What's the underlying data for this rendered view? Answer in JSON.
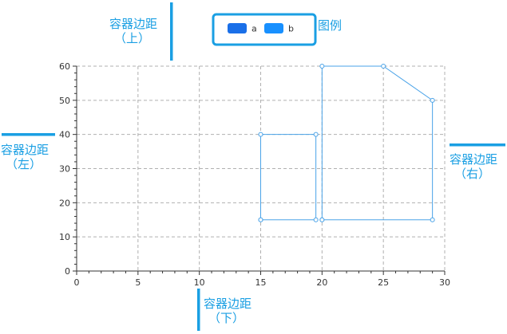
{
  "annotations": {
    "top": {
      "line1": "容器边距",
      "line2": "（上）"
    },
    "left": {
      "line1": "容器边距",
      "line2": "（左）"
    },
    "right": {
      "line1": "容器边距",
      "line2": "（右）"
    },
    "bottom": {
      "line1": "容器边距",
      "line2": "（下）"
    },
    "legend_label": "图例"
  },
  "colors": {
    "annotation": "#1a9fe3",
    "series_a": "#1a6fe8",
    "series_b": "#1890ff",
    "line": "#4aa3e8"
  },
  "chart_data": {
    "type": "line",
    "xlim": [
      0,
      30
    ],
    "ylim": [
      0,
      60
    ],
    "x_ticks": [
      0,
      5,
      10,
      15,
      20,
      25,
      30
    ],
    "y_ticks": [
      0,
      10,
      20,
      30,
      40,
      50,
      60
    ],
    "grid": true,
    "legend_placement": "top-center",
    "series": [
      {
        "name": "a",
        "points": [
          [
            15,
            15
          ],
          [
            15,
            40
          ],
          [
            19.5,
            40
          ],
          [
            19.5,
            15
          ],
          [
            15,
            15
          ]
        ]
      },
      {
        "name": "b",
        "points": [
          [
            20,
            15
          ],
          [
            20,
            60
          ],
          [
            25,
            60
          ],
          [
            29,
            50
          ],
          [
            29,
            15
          ],
          [
            20,
            15
          ]
        ]
      }
    ]
  }
}
